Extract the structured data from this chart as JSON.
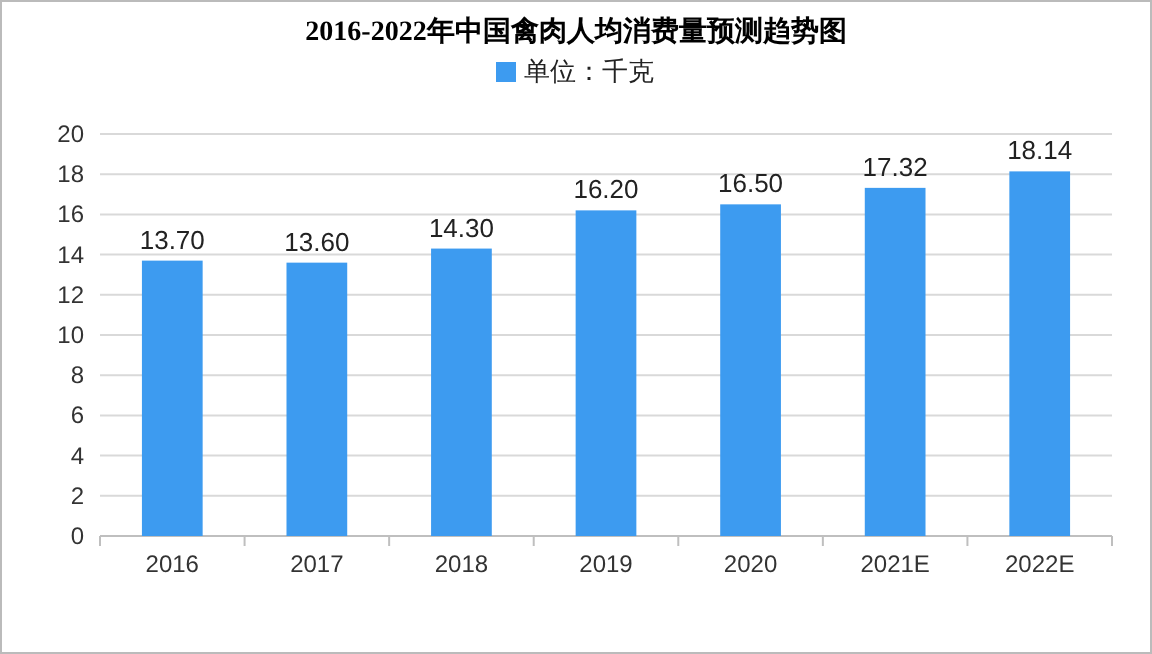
{
  "chart_data": {
    "type": "bar",
    "title": "2016-2022年中国禽肉人均消费量预测趋势图",
    "categories": [
      "2016",
      "2017",
      "2018",
      "2019",
      "2020",
      "2021E",
      "2022E"
    ],
    "series": [
      {
        "name": "单位：千克",
        "color": "#3d9bf0",
        "values": [
          13.7,
          13.6,
          14.3,
          16.2,
          16.5,
          17.32,
          18.14
        ]
      }
    ],
    "value_labels": [
      "13.70",
      "13.60",
      "14.30",
      "16.20",
      "16.50",
      "17.32",
      "18.14"
    ],
    "ylim": [
      0,
      20
    ],
    "yticks": [
      0,
      2,
      4,
      6,
      8,
      10,
      12,
      14,
      16,
      18,
      20
    ],
    "grid": "y",
    "legend": "top"
  }
}
